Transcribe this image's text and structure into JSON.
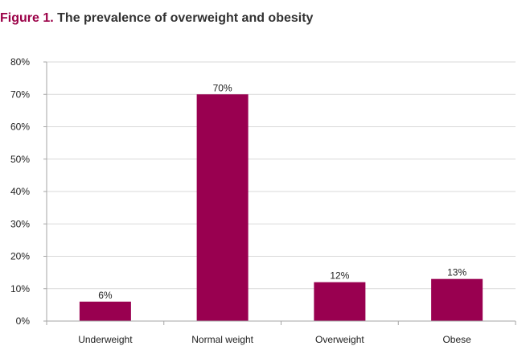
{
  "chart_data": {
    "type": "bar",
    "title_prefix": "Figure 1.",
    "title": "The prevalence of overweight and obesity",
    "categories": [
      "Underweight",
      "Normal weight",
      "Overweight",
      "Obese"
    ],
    "values": [
      6,
      70,
      12,
      13
    ],
    "data_labels": [
      "6%",
      "70%",
      "12%",
      "13%"
    ],
    "y_ticks": [
      0,
      10,
      20,
      30,
      40,
      50,
      60,
      70,
      80
    ],
    "y_tick_labels": [
      "0%",
      "10%",
      "20%",
      "30%",
      "40%",
      "50%",
      "60%",
      "70%",
      "80%"
    ],
    "ylim": [
      0,
      80
    ],
    "xlabel": "",
    "ylabel": "",
    "grid": true,
    "legend": "none",
    "colors": {
      "bar": "#990050",
      "title_prefix": "#9b0047",
      "grid": "#d9d9d9",
      "axis": "#a6a6a6"
    }
  }
}
